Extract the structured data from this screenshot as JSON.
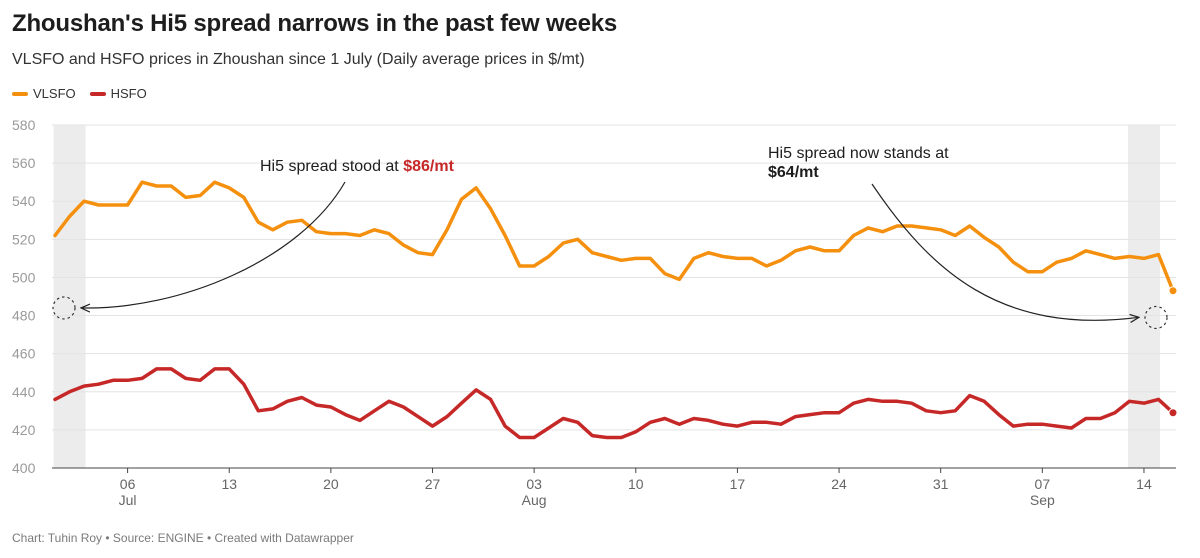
{
  "chart_data": {
    "type": "line",
    "title": "Zhoushan's Hi5 spread narrows in the past few weeks",
    "subtitle": "VLSFO and HSFO prices in Zhoushan since 1 July (Daily average prices in $/mt)",
    "ylim": [
      400,
      580
    ],
    "yticks": [
      "400",
      "420",
      "440",
      "460",
      "480",
      "500",
      "520",
      "540",
      "560",
      "580"
    ],
    "xticks": [
      {
        "date": "2024-07-06",
        "label": "06",
        "sublabel": "Jul"
      },
      {
        "date": "2024-07-13",
        "label": "13",
        "sublabel": ""
      },
      {
        "date": "2024-07-20",
        "label": "20",
        "sublabel": ""
      },
      {
        "date": "2024-07-27",
        "label": "27",
        "sublabel": ""
      },
      {
        "date": "2024-08-03",
        "label": "03",
        "sublabel": "Aug"
      },
      {
        "date": "2024-08-10",
        "label": "10",
        "sublabel": ""
      },
      {
        "date": "2024-08-17",
        "label": "17",
        "sublabel": ""
      },
      {
        "date": "2024-08-24",
        "label": "24",
        "sublabel": ""
      },
      {
        "date": "2024-08-31",
        "label": "31",
        "sublabel": ""
      },
      {
        "date": "2024-09-07",
        "label": "07",
        "sublabel": "Sep"
      },
      {
        "date": "2024-09-14",
        "label": "14",
        "sublabel": ""
      }
    ],
    "highlight_ranges": [
      [
        "2024-07-01",
        "2024-07-03"
      ],
      [
        "2024-09-13",
        "2024-09-15"
      ]
    ],
    "grid": true,
    "legend_placement": "top-left",
    "series": [
      {
        "name": "VLSFO",
        "color": "#f5900f",
        "points": [
          [
            "2024-07-01",
            522
          ],
          [
            "2024-07-02",
            532
          ],
          [
            "2024-07-03",
            540
          ],
          [
            "2024-07-04",
            538
          ],
          [
            "2024-07-05",
            538
          ],
          [
            "2024-07-06",
            538
          ],
          [
            "2024-07-07",
            550
          ],
          [
            "2024-07-08",
            548
          ],
          [
            "2024-07-09",
            548
          ],
          [
            "2024-07-10",
            542
          ],
          [
            "2024-07-11",
            543
          ],
          [
            "2024-07-12",
            550
          ],
          [
            "2024-07-13",
            547
          ],
          [
            "2024-07-14",
            542
          ],
          [
            "2024-07-15",
            529
          ],
          [
            "2024-07-16",
            525
          ],
          [
            "2024-07-17",
            529
          ],
          [
            "2024-07-18",
            530
          ],
          [
            "2024-07-19",
            524
          ],
          [
            "2024-07-20",
            523
          ],
          [
            "2024-07-21",
            523
          ],
          [
            "2024-07-22",
            522
          ],
          [
            "2024-07-23",
            525
          ],
          [
            "2024-07-24",
            523
          ],
          [
            "2024-07-25",
            517
          ],
          [
            "2024-07-26",
            513
          ],
          [
            "2024-07-27",
            512
          ],
          [
            "2024-07-28",
            525
          ],
          [
            "2024-07-29",
            541
          ],
          [
            "2024-07-30",
            547
          ],
          [
            "2024-07-31",
            536
          ],
          [
            "2024-08-01",
            522
          ],
          [
            "2024-08-02",
            506
          ],
          [
            "2024-08-03",
            506
          ],
          [
            "2024-08-04",
            511
          ],
          [
            "2024-08-05",
            518
          ],
          [
            "2024-08-06",
            520
          ],
          [
            "2024-08-07",
            513
          ],
          [
            "2024-08-08",
            511
          ],
          [
            "2024-08-09",
            509
          ],
          [
            "2024-08-10",
            510
          ],
          [
            "2024-08-11",
            510
          ],
          [
            "2024-08-12",
            502
          ],
          [
            "2024-08-13",
            499
          ],
          [
            "2024-08-14",
            510
          ],
          [
            "2024-08-15",
            513
          ],
          [
            "2024-08-16",
            511
          ],
          [
            "2024-08-17",
            510
          ],
          [
            "2024-08-18",
            510
          ],
          [
            "2024-08-19",
            506
          ],
          [
            "2024-08-20",
            509
          ],
          [
            "2024-08-21",
            514
          ],
          [
            "2024-08-22",
            516
          ],
          [
            "2024-08-23",
            514
          ],
          [
            "2024-08-24",
            514
          ],
          [
            "2024-08-25",
            522
          ],
          [
            "2024-08-26",
            526
          ],
          [
            "2024-08-27",
            524
          ],
          [
            "2024-08-28",
            527
          ],
          [
            "2024-08-29",
            527
          ],
          [
            "2024-08-30",
            526
          ],
          [
            "2024-08-31",
            525
          ],
          [
            "2024-09-01",
            522
          ],
          [
            "2024-09-02",
            527
          ],
          [
            "2024-09-03",
            521
          ],
          [
            "2024-09-04",
            516
          ],
          [
            "2024-09-05",
            508
          ],
          [
            "2024-09-06",
            503
          ],
          [
            "2024-09-07",
            503
          ],
          [
            "2024-09-08",
            508
          ],
          [
            "2024-09-09",
            510
          ],
          [
            "2024-09-10",
            514
          ],
          [
            "2024-09-11",
            512
          ],
          [
            "2024-09-12",
            510
          ],
          [
            "2024-09-13",
            511
          ],
          [
            "2024-09-14",
            510
          ],
          [
            "2024-09-15",
            512
          ],
          [
            "2024-09-16",
            493
          ]
        ]
      },
      {
        "name": "HSFO",
        "color": "#c62828",
        "points": [
          [
            "2024-07-01",
            436
          ],
          [
            "2024-07-02",
            440
          ],
          [
            "2024-07-03",
            443
          ],
          [
            "2024-07-04",
            444
          ],
          [
            "2024-07-05",
            446
          ],
          [
            "2024-07-06",
            446
          ],
          [
            "2024-07-07",
            447
          ],
          [
            "2024-07-08",
            452
          ],
          [
            "2024-07-09",
            452
          ],
          [
            "2024-07-10",
            447
          ],
          [
            "2024-07-11",
            446
          ],
          [
            "2024-07-12",
            452
          ],
          [
            "2024-07-13",
            452
          ],
          [
            "2024-07-14",
            444
          ],
          [
            "2024-07-15",
            430
          ],
          [
            "2024-07-16",
            431
          ],
          [
            "2024-07-17",
            435
          ],
          [
            "2024-07-18",
            437
          ],
          [
            "2024-07-19",
            433
          ],
          [
            "2024-07-20",
            432
          ],
          [
            "2024-07-21",
            428
          ],
          [
            "2024-07-22",
            425
          ],
          [
            "2024-07-23",
            430
          ],
          [
            "2024-07-24",
            435
          ],
          [
            "2024-07-25",
            432
          ],
          [
            "2024-07-26",
            427
          ],
          [
            "2024-07-27",
            422
          ],
          [
            "2024-07-28",
            427
          ],
          [
            "2024-07-29",
            434
          ],
          [
            "2024-07-30",
            441
          ],
          [
            "2024-07-31",
            436
          ],
          [
            "2024-08-01",
            422
          ],
          [
            "2024-08-02",
            416
          ],
          [
            "2024-08-03",
            416
          ],
          [
            "2024-08-04",
            421
          ],
          [
            "2024-08-05",
            426
          ],
          [
            "2024-08-06",
            424
          ],
          [
            "2024-08-07",
            417
          ],
          [
            "2024-08-08",
            416
          ],
          [
            "2024-08-09",
            416
          ],
          [
            "2024-08-10",
            419
          ],
          [
            "2024-08-11",
            424
          ],
          [
            "2024-08-12",
            426
          ],
          [
            "2024-08-13",
            423
          ],
          [
            "2024-08-14",
            426
          ],
          [
            "2024-08-15",
            425
          ],
          [
            "2024-08-16",
            423
          ],
          [
            "2024-08-17",
            422
          ],
          [
            "2024-08-18",
            424
          ],
          [
            "2024-08-19",
            424
          ],
          [
            "2024-08-20",
            423
          ],
          [
            "2024-08-21",
            427
          ],
          [
            "2024-08-22",
            428
          ],
          [
            "2024-08-23",
            429
          ],
          [
            "2024-08-24",
            429
          ],
          [
            "2024-08-25",
            434
          ],
          [
            "2024-08-26",
            436
          ],
          [
            "2024-08-27",
            435
          ],
          [
            "2024-08-28",
            435
          ],
          [
            "2024-08-29",
            434
          ],
          [
            "2024-08-30",
            430
          ],
          [
            "2024-08-31",
            429
          ],
          [
            "2024-09-01",
            430
          ],
          [
            "2024-09-02",
            438
          ],
          [
            "2024-09-03",
            435
          ],
          [
            "2024-09-04",
            428
          ],
          [
            "2024-09-05",
            422
          ],
          [
            "2024-09-06",
            423
          ],
          [
            "2024-09-07",
            423
          ],
          [
            "2024-09-08",
            422
          ],
          [
            "2024-09-09",
            421
          ],
          [
            "2024-09-10",
            426
          ],
          [
            "2024-09-11",
            426
          ],
          [
            "2024-09-12",
            429
          ],
          [
            "2024-09-13",
            435
          ],
          [
            "2024-09-14",
            434
          ],
          [
            "2024-09-15",
            436
          ],
          [
            "2024-09-16",
            429
          ]
        ]
      }
    ],
    "annotations": [
      {
        "text": "Hi5 spread stood at ",
        "highlight": "$86/mt",
        "date": "2024-07-01",
        "highlight_color": "#c62828"
      },
      {
        "text": "Hi5 spread now stands at",
        "highlight": "$64/mt",
        "date": "2024-09-16",
        "highlight_color": "#c62828"
      }
    ]
  },
  "footer": "Chart: Tuhin Roy • Source: ENGINE • Created with Datawrapper"
}
